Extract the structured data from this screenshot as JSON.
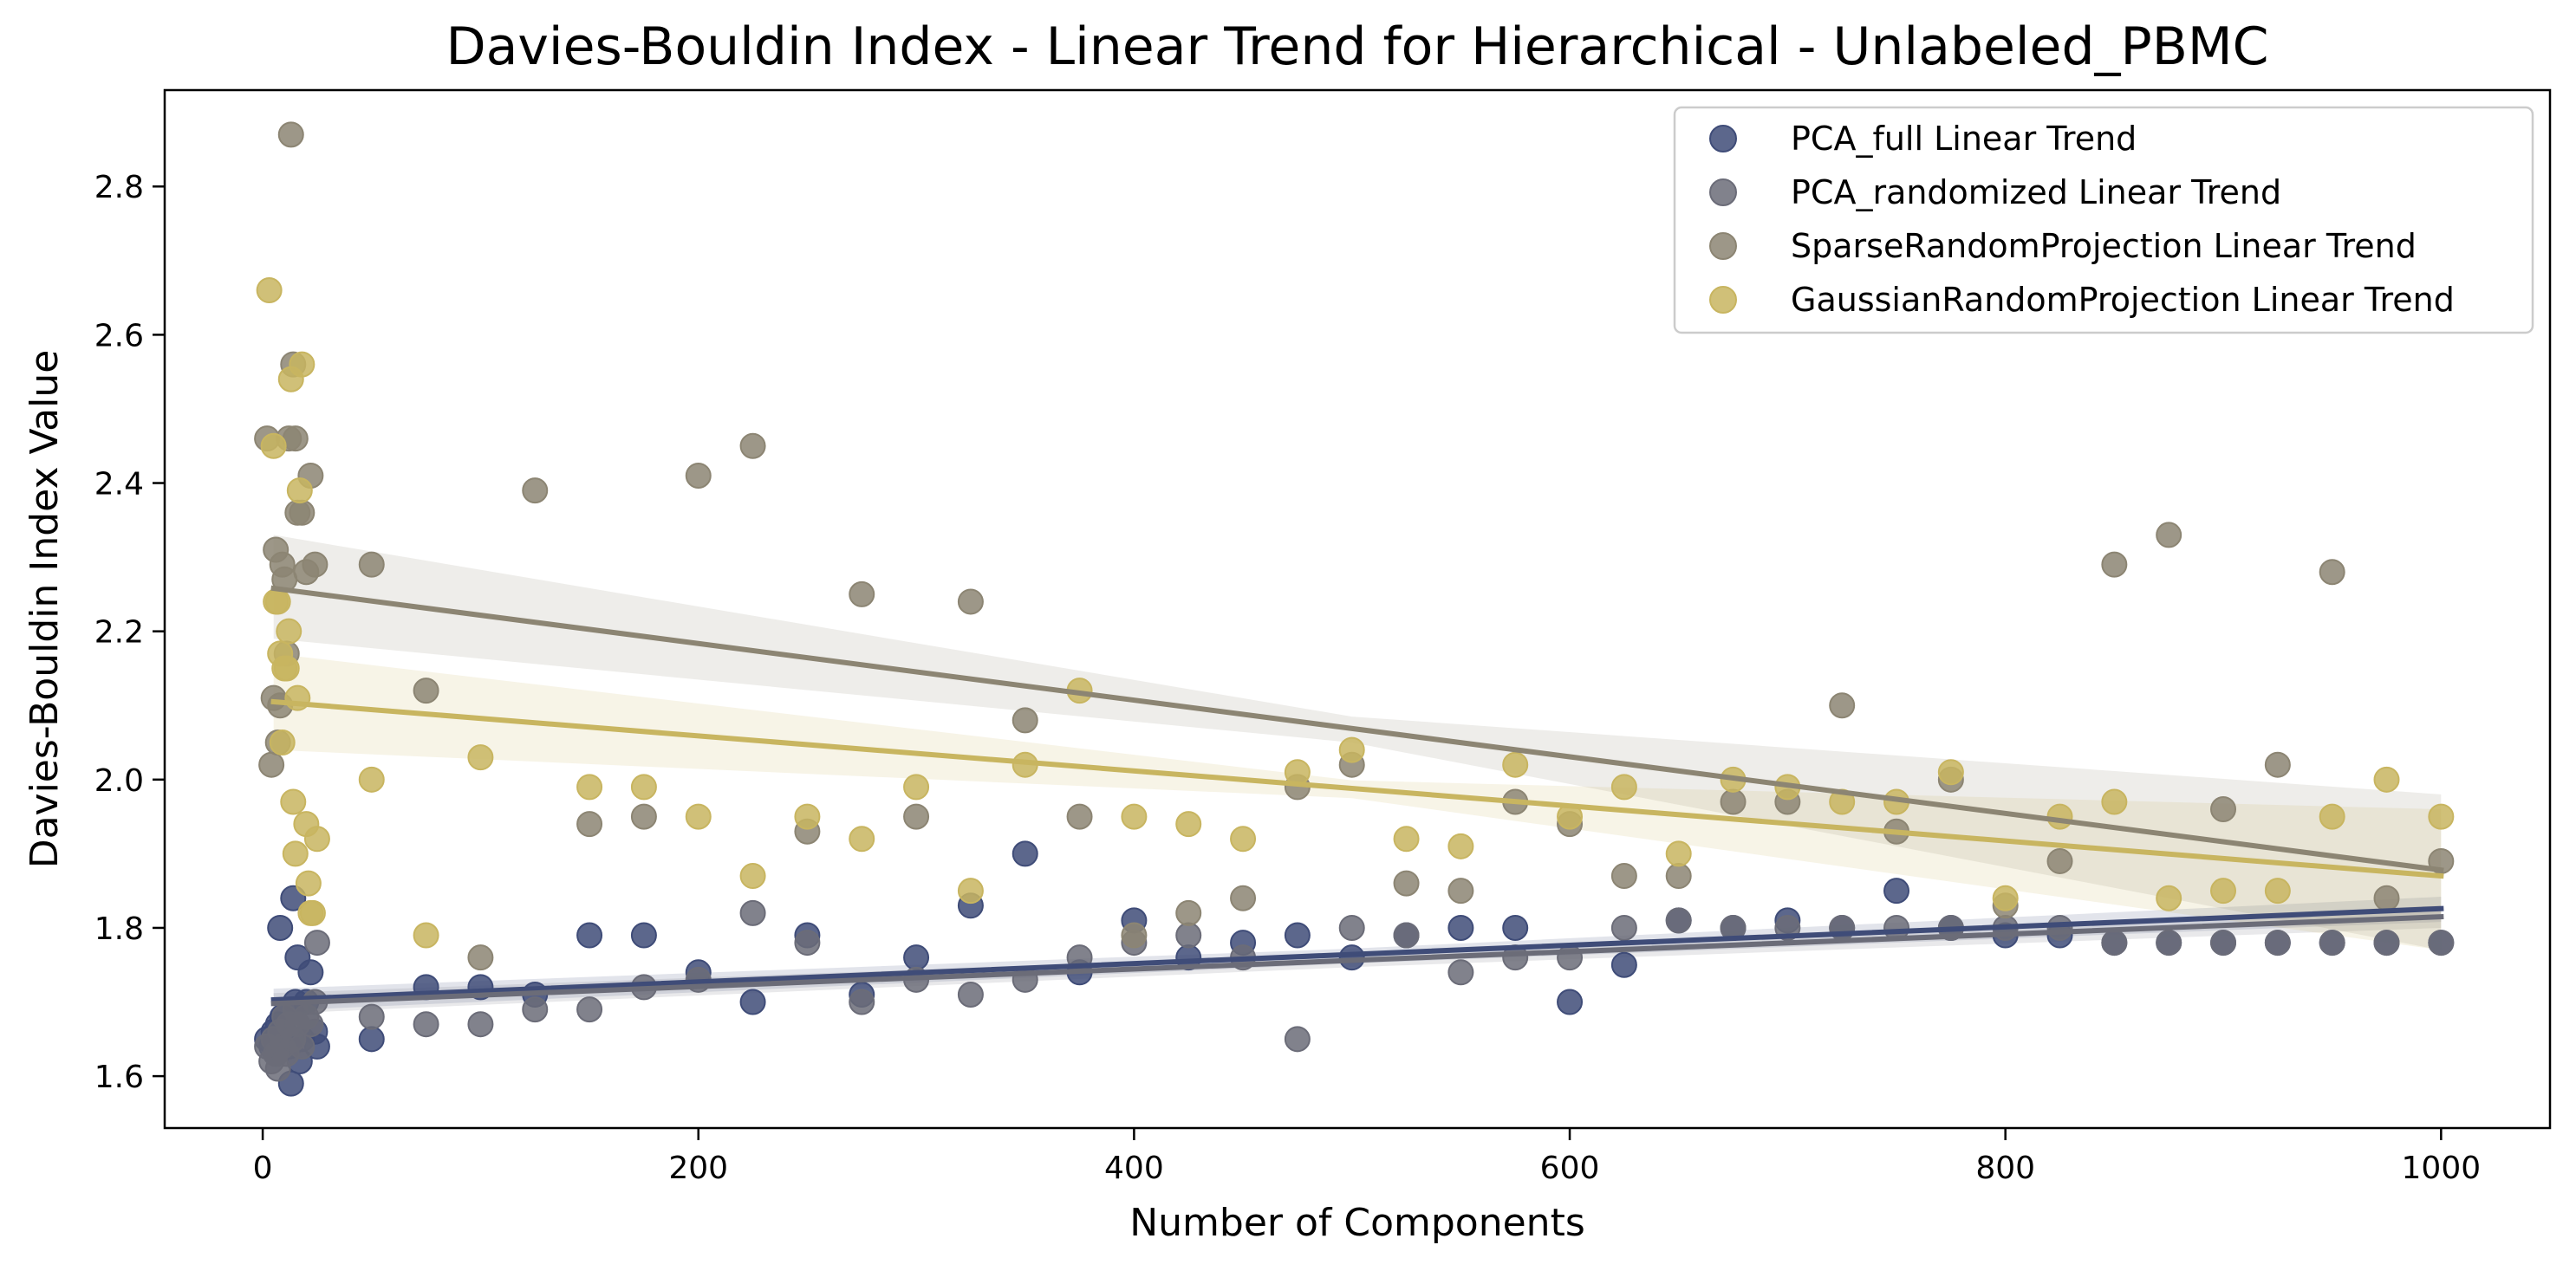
{
  "chart_data": {
    "type": "scatter",
    "title": "Davies-Bouldin Index - Linear Trend for Hierarchical - Unlabeled_PBMC",
    "xlabel": "Number of Components",
    "ylabel": "Davies-Bouldin Index Value",
    "xlim": [
      -45,
      1050
    ],
    "ylim": [
      1.53,
      2.93
    ],
    "xticks": [
      0,
      200,
      400,
      600,
      800,
      1000
    ],
    "yticks": [
      1.6,
      1.8,
      2.0,
      2.2,
      2.4,
      2.6,
      2.8
    ],
    "xtick_labels": [
      "0",
      "200",
      "400",
      "600",
      "800",
      "1000"
    ],
    "ytick_labels": [
      "1.6",
      "1.8",
      "2.0",
      "2.2",
      "2.4",
      "2.6",
      "2.8"
    ],
    "grid": false,
    "legend_position": "top-right",
    "series": [
      {
        "name": "PCA_full Linear Trend",
        "color": "#3f4c78",
        "points": [
          [
            2,
            1.65
          ],
          [
            4,
            1.64
          ],
          [
            5,
            1.66
          ],
          [
            6,
            1.63
          ],
          [
            7,
            1.67
          ],
          [
            8,
            1.8
          ],
          [
            9,
            1.68
          ],
          [
            10,
            1.66
          ],
          [
            11,
            1.65
          ],
          [
            12,
            1.64
          ],
          [
            13,
            1.59
          ],
          [
            14,
            1.84
          ],
          [
            15,
            1.7
          ],
          [
            16,
            1.76
          ],
          [
            17,
            1.62
          ],
          [
            18,
            1.65
          ],
          [
            20,
            1.7
          ],
          [
            22,
            1.74
          ],
          [
            24,
            1.66
          ],
          [
            25,
            1.64
          ],
          [
            50,
            1.65
          ],
          [
            75,
            1.72
          ],
          [
            100,
            1.72
          ],
          [
            125,
            1.71
          ],
          [
            150,
            1.79
          ],
          [
            175,
            1.79
          ],
          [
            200,
            1.74
          ],
          [
            225,
            1.7
          ],
          [
            250,
            1.79
          ],
          [
            275,
            1.71
          ],
          [
            300,
            1.76
          ],
          [
            325,
            1.83
          ],
          [
            350,
            1.9
          ],
          [
            375,
            1.74
          ],
          [
            400,
            1.81
          ],
          [
            425,
            1.76
          ],
          [
            450,
            1.78
          ],
          [
            475,
            1.79
          ],
          [
            500,
            1.76
          ],
          [
            525,
            1.79
          ],
          [
            550,
            1.8
          ],
          [
            575,
            1.8
          ],
          [
            600,
            1.7
          ],
          [
            625,
            1.75
          ],
          [
            650,
            1.81
          ],
          [
            675,
            1.8
          ],
          [
            700,
            1.81
          ],
          [
            725,
            1.8
          ],
          [
            750,
            1.85
          ],
          [
            775,
            1.8
          ],
          [
            800,
            1.79
          ],
          [
            825,
            1.79
          ],
          [
            850,
            1.78
          ],
          [
            875,
            1.78
          ],
          [
            900,
            1.78
          ],
          [
            925,
            1.78
          ],
          [
            950,
            1.78
          ],
          [
            975,
            1.78
          ],
          [
            1000,
            1.78
          ]
        ],
        "trend": [
          [
            5,
            1.703
          ],
          [
            1000,
            1.826
          ]
        ],
        "ci": [
          [
            5,
            1.718,
            1.688
          ],
          [
            500,
            1.772,
            1.752
          ],
          [
            1000,
            1.842,
            1.808
          ]
        ]
      },
      {
        "name": "PCA_randomized Linear Trend",
        "color": "#6b6c78",
        "points": [
          [
            2,
            1.64
          ],
          [
            4,
            1.62
          ],
          [
            5,
            1.65
          ],
          [
            6,
            1.63
          ],
          [
            7,
            1.61
          ],
          [
            8,
            1.66
          ],
          [
            9,
            1.64
          ],
          [
            10,
            1.68
          ],
          [
            11,
            1.63
          ],
          [
            12,
            1.67
          ],
          [
            14,
            1.65
          ],
          [
            15,
            1.69
          ],
          [
            16,
            1.67
          ],
          [
            18,
            1.64
          ],
          [
            20,
            1.68
          ],
          [
            22,
            1.67
          ],
          [
            24,
            1.7
          ],
          [
            25,
            1.78
          ],
          [
            50,
            1.68
          ],
          [
            75,
            1.67
          ],
          [
            100,
            1.67
          ],
          [
            125,
            1.69
          ],
          [
            150,
            1.69
          ],
          [
            175,
            1.72
          ],
          [
            200,
            1.73
          ],
          [
            225,
            1.82
          ],
          [
            250,
            1.78
          ],
          [
            275,
            1.7
          ],
          [
            300,
            1.73
          ],
          [
            325,
            1.71
          ],
          [
            350,
            1.73
          ],
          [
            375,
            1.76
          ],
          [
            400,
            1.78
          ],
          [
            425,
            1.79
          ],
          [
            450,
            1.76
          ],
          [
            475,
            1.65
          ],
          [
            500,
            1.8
          ],
          [
            525,
            1.79
          ],
          [
            550,
            1.74
          ],
          [
            575,
            1.76
          ],
          [
            600,
            1.76
          ],
          [
            625,
            1.8
          ],
          [
            650,
            1.81
          ],
          [
            675,
            1.8
          ],
          [
            700,
            1.8
          ],
          [
            725,
            1.8
          ],
          [
            750,
            1.8
          ],
          [
            775,
            1.8
          ],
          [
            800,
            1.8
          ],
          [
            825,
            1.8
          ],
          [
            850,
            1.78
          ],
          [
            875,
            1.78
          ],
          [
            900,
            1.78
          ],
          [
            925,
            1.78
          ],
          [
            950,
            1.78
          ],
          [
            975,
            1.78
          ],
          [
            1000,
            1.78
          ]
        ],
        "trend": [
          [
            5,
            1.698
          ],
          [
            1000,
            1.815
          ]
        ],
        "ci": [
          [
            5,
            1.712,
            1.684
          ],
          [
            500,
            1.765,
            1.747
          ],
          [
            1000,
            1.83,
            1.8
          ]
        ]
      },
      {
        "name": "SparseRandomProjection Linear Trend",
        "color": "#8c8573",
        "points": [
          [
            2,
            2.46
          ],
          [
            4,
            2.02
          ],
          [
            5,
            2.11
          ],
          [
            6,
            2.31
          ],
          [
            7,
            2.05
          ],
          [
            8,
            2.1
          ],
          [
            9,
            2.29
          ],
          [
            10,
            2.27
          ],
          [
            11,
            2.17
          ],
          [
            12,
            2.46
          ],
          [
            13,
            2.87
          ],
          [
            14,
            2.56
          ],
          [
            15,
            2.46
          ],
          [
            16,
            2.36
          ],
          [
            18,
            2.36
          ],
          [
            20,
            2.28
          ],
          [
            22,
            2.41
          ],
          [
            24,
            2.29
          ],
          [
            50,
            2.29
          ],
          [
            75,
            2.12
          ],
          [
            100,
            1.76
          ],
          [
            125,
            2.39
          ],
          [
            150,
            1.94
          ],
          [
            175,
            1.95
          ],
          [
            200,
            2.41
          ],
          [
            225,
            2.45
          ],
          [
            250,
            1.93
          ],
          [
            275,
            2.25
          ],
          [
            300,
            1.95
          ],
          [
            325,
            2.24
          ],
          [
            350,
            2.08
          ],
          [
            375,
            1.95
          ],
          [
            400,
            1.79
          ],
          [
            425,
            1.82
          ],
          [
            450,
            1.84
          ],
          [
            475,
            1.99
          ],
          [
            500,
            2.02
          ],
          [
            525,
            1.86
          ],
          [
            550,
            1.85
          ],
          [
            575,
            1.97
          ],
          [
            600,
            1.94
          ],
          [
            625,
            1.87
          ],
          [
            650,
            1.87
          ],
          [
            675,
            1.97
          ],
          [
            700,
            1.97
          ],
          [
            725,
            2.1
          ],
          [
            750,
            1.93
          ],
          [
            775,
            2.0
          ],
          [
            800,
            1.83
          ],
          [
            825,
            1.89
          ],
          [
            850,
            2.29
          ],
          [
            875,
            2.33
          ],
          [
            900,
            1.96
          ],
          [
            925,
            2.02
          ],
          [
            950,
            2.28
          ],
          [
            975,
            1.84
          ],
          [
            1000,
            1.89
          ]
        ],
        "trend": [
          [
            5,
            2.258
          ],
          [
            1000,
            1.878
          ]
        ],
        "ci": [
          [
            5,
            2.33,
            2.19
          ],
          [
            500,
            2.085,
            2.05
          ],
          [
            1000,
            1.98,
            1.77
          ]
        ]
      },
      {
        "name": "GaussianRandomProjection Linear Trend",
        "color": "#c8b560",
        "points": [
          [
            3,
            2.66
          ],
          [
            5,
            2.45
          ],
          [
            6,
            2.24
          ],
          [
            7,
            2.24
          ],
          [
            8,
            2.17
          ],
          [
            9,
            2.05
          ],
          [
            10,
            2.15
          ],
          [
            11,
            2.15
          ],
          [
            12,
            2.2
          ],
          [
            13,
            2.54
          ],
          [
            14,
            1.97
          ],
          [
            15,
            1.9
          ],
          [
            16,
            2.11
          ],
          [
            17,
            2.39
          ],
          [
            18,
            2.56
          ],
          [
            20,
            1.94
          ],
          [
            21,
            1.86
          ],
          [
            22,
            1.82
          ],
          [
            23,
            1.82
          ],
          [
            25,
            1.92
          ],
          [
            50,
            2.0
          ],
          [
            75,
            1.79
          ],
          [
            100,
            2.03
          ],
          [
            150,
            1.99
          ],
          [
            175,
            1.99
          ],
          [
            200,
            1.95
          ],
          [
            225,
            1.87
          ],
          [
            250,
            1.95
          ],
          [
            275,
            1.92
          ],
          [
            300,
            1.99
          ],
          [
            325,
            1.85
          ],
          [
            350,
            2.02
          ],
          [
            375,
            2.12
          ],
          [
            400,
            1.95
          ],
          [
            425,
            1.94
          ],
          [
            450,
            1.92
          ],
          [
            475,
            2.01
          ],
          [
            500,
            2.04
          ],
          [
            525,
            1.92
          ],
          [
            550,
            1.91
          ],
          [
            575,
            2.02
          ],
          [
            600,
            1.95
          ],
          [
            625,
            1.99
          ],
          [
            650,
            1.9
          ],
          [
            675,
            2.0
          ],
          [
            700,
            1.99
          ],
          [
            725,
            1.97
          ],
          [
            750,
            1.97
          ],
          [
            775,
            2.01
          ],
          [
            800,
            1.84
          ],
          [
            825,
            1.95
          ],
          [
            850,
            1.97
          ],
          [
            875,
            1.84
          ],
          [
            900,
            1.85
          ],
          [
            925,
            1.85
          ],
          [
            950,
            1.95
          ],
          [
            975,
            2.0
          ],
          [
            1000,
            1.95
          ]
        ],
        "trend": [
          [
            5,
            2.105
          ],
          [
            1000,
            1.87
          ]
        ],
        "ci": [
          [
            5,
            2.17,
            2.04
          ],
          [
            500,
            1.999,
            1.975
          ],
          [
            1000,
            1.96,
            1.77
          ]
        ]
      }
    ]
  }
}
